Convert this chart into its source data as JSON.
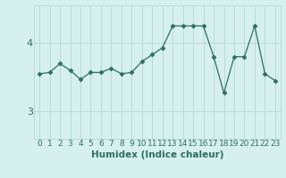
{
  "x": [
    0,
    1,
    2,
    3,
    4,
    5,
    6,
    7,
    8,
    9,
    10,
    11,
    12,
    13,
    14,
    15,
    16,
    17,
    18,
    19,
    20,
    21,
    22,
    23
  ],
  "y": [
    3.55,
    3.57,
    3.7,
    3.6,
    3.47,
    3.57,
    3.57,
    3.63,
    3.55,
    3.57,
    3.73,
    3.83,
    3.93,
    4.25,
    4.25,
    4.25,
    4.25,
    3.8,
    3.27,
    3.8,
    3.8,
    4.25,
    3.55,
    3.45
  ],
  "xlabel": "Humidex (Indice chaleur)",
  "yticks": [
    3,
    4
  ],
  "ylim": [
    2.6,
    4.55
  ],
  "xlim": [
    -0.5,
    23.5
  ],
  "line_color": "#2d6e65",
  "marker": "D",
  "marker_size": 2.5,
  "bg_color": "#d6f0ee",
  "grid_color": "#b8dbd7",
  "tick_color": "#2d6e65",
  "label_color": "#2d6e65",
  "xlabel_fontsize": 7.5,
  "ytick_fontsize": 8,
  "xtick_fontsize": 6.5
}
